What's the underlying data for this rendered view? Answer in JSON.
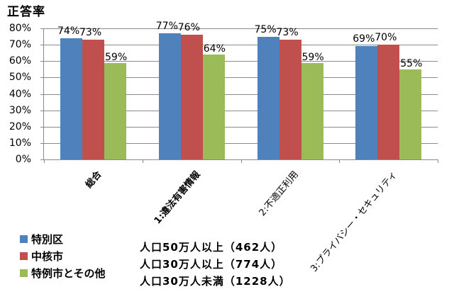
{
  "chart_data": {
    "type": "bar",
    "title": "",
    "ylabel": "正答率",
    "xlabel": "",
    "ylim": [
      0,
      0.8
    ],
    "yticks": [
      "0%",
      "10%",
      "20%",
      "30%",
      "40%",
      "50%",
      "60%",
      "70%",
      "80%"
    ],
    "grid": true,
    "legend_position": "bottom-left",
    "categories": [
      "総合",
      "1:違法有害情報",
      "2:不適正利用",
      "3:プライバシー・セキュリティ"
    ],
    "series": [
      {
        "name": "特別区",
        "note": "人口50万人以上（462人）",
        "color": "#4f81bd",
        "values": [
          0.74,
          0.77,
          0.75,
          0.69
        ],
        "labels": [
          "74%",
          "77%",
          "75%",
          "69%"
        ]
      },
      {
        "name": "中核市",
        "note": "人口30万人以上（774人）",
        "color": "#c0504d",
        "values": [
          0.73,
          0.76,
          0.73,
          0.7
        ],
        "labels": [
          "73%",
          "76%",
          "73%",
          "70%"
        ]
      },
      {
        "name": "特例市とその他",
        "note": "人口30万人未満（1228人）",
        "color": "#9bbb59",
        "values": [
          0.59,
          0.64,
          0.59,
          0.55
        ],
        "labels": [
          "59%",
          "64%",
          "59%",
          "55%"
        ]
      }
    ]
  }
}
